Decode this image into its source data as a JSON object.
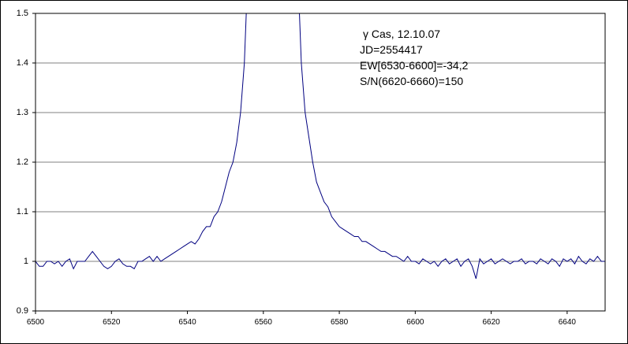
{
  "chart_data": {
    "type": "line",
    "annotations": [
      "γ Cas, 12.10.07",
      "JD=2554417",
      "EW[6530-6600]=-34,2",
      "S/N(6620-6660)=150"
    ],
    "x": [
      6500,
      6501,
      6502,
      6503,
      6504,
      6505,
      6506,
      6507,
      6508,
      6509,
      6510,
      6511,
      6512,
      6513,
      6514,
      6515,
      6516,
      6517,
      6518,
      6519,
      6520,
      6521,
      6522,
      6523,
      6524,
      6525,
      6526,
      6527,
      6528,
      6529,
      6530,
      6531,
      6532,
      6533,
      6534,
      6535,
      6536,
      6537,
      6538,
      6539,
      6540,
      6541,
      6542,
      6543,
      6544,
      6545,
      6546,
      6547,
      6548,
      6549,
      6550,
      6551,
      6552,
      6553,
      6554,
      6555,
      6555.5,
      6562,
      6569.5,
      6570,
      6571,
      6572,
      6573,
      6574,
      6575,
      6576,
      6577,
      6578,
      6579,
      6580,
      6581,
      6582,
      6583,
      6584,
      6585,
      6586,
      6587,
      6588,
      6589,
      6590,
      6591,
      6592,
      6593,
      6594,
      6595,
      6596,
      6597,
      6598,
      6599,
      6600,
      6601,
      6602,
      6603,
      6604,
      6605,
      6606,
      6607,
      6608,
      6609,
      6610,
      6611,
      6612,
      6613,
      6614,
      6615,
      6616,
      6617,
      6618,
      6619,
      6620,
      6621,
      6622,
      6623,
      6624,
      6625,
      6626,
      6627,
      6628,
      6629,
      6630,
      6631,
      6632,
      6633,
      6634,
      6635,
      6636,
      6637,
      6638,
      6639,
      6640,
      6641,
      6642,
      6643,
      6644,
      6645,
      6646,
      6647,
      6648,
      6649,
      6650
    ],
    "series": [
      {
        "color": "#000080",
        "values": [
          1.0,
          0.99,
          0.99,
          1.0,
          1.0,
          0.995,
          1.0,
          0.99,
          1.0,
          1.005,
          0.985,
          1.0,
          1.0,
          1.0,
          1.01,
          1.02,
          1.01,
          1.0,
          0.99,
          0.985,
          0.99,
          1.0,
          1.005,
          0.995,
          0.99,
          0.99,
          0.985,
          1.0,
          1.0,
          1.005,
          1.01,
          1.0,
          1.01,
          1.0,
          1.005,
          1.01,
          1.015,
          1.02,
          1.025,
          1.03,
          1.035,
          1.04,
          1.035,
          1.045,
          1.06,
          1.07,
          1.07,
          1.09,
          1.1,
          1.12,
          1.15,
          1.18,
          1.2,
          1.24,
          1.3,
          1.4,
          1.5,
          null,
          1.5,
          1.4,
          1.3,
          1.25,
          1.2,
          1.16,
          1.14,
          1.12,
          1.11,
          1.09,
          1.08,
          1.07,
          1.065,
          1.06,
          1.055,
          1.05,
          1.05,
          1.04,
          1.04,
          1.035,
          1.03,
          1.025,
          1.02,
          1.02,
          1.015,
          1.01,
          1.01,
          1.005,
          1.0,
          1.01,
          1.0,
          1.0,
          0.995,
          1.005,
          1.0,
          0.995,
          1.0,
          0.99,
          1.0,
          1.005,
          0.995,
          1.0,
          1.005,
          0.99,
          1.0,
          1.005,
          0.99,
          0.965,
          1.005,
          0.995,
          1.0,
          1.005,
          0.995,
          1.0,
          1.005,
          1.0,
          0.995,
          1.0,
          1.0,
          1.005,
          0.995,
          1.0,
          1.0,
          0.995,
          1.005,
          1.0,
          0.995,
          1.005,
          1.0,
          0.99,
          1.005,
          1.0,
          1.005,
          0.995,
          1.01,
          1.0,
          0.995,
          1.005,
          1.0,
          1.01,
          1.0,
          1.0
        ]
      }
    ],
    "xlim": [
      6500,
      6650
    ],
    "xticks": [
      6500,
      6520,
      6540,
      6560,
      6580,
      6600,
      6620,
      6640
    ],
    "ylim": [
      0.9,
      1.5
    ],
    "yticks": [
      0.9,
      1,
      1.1,
      1.2,
      1.3,
      1.4,
      1.5
    ],
    "grid": true
  }
}
